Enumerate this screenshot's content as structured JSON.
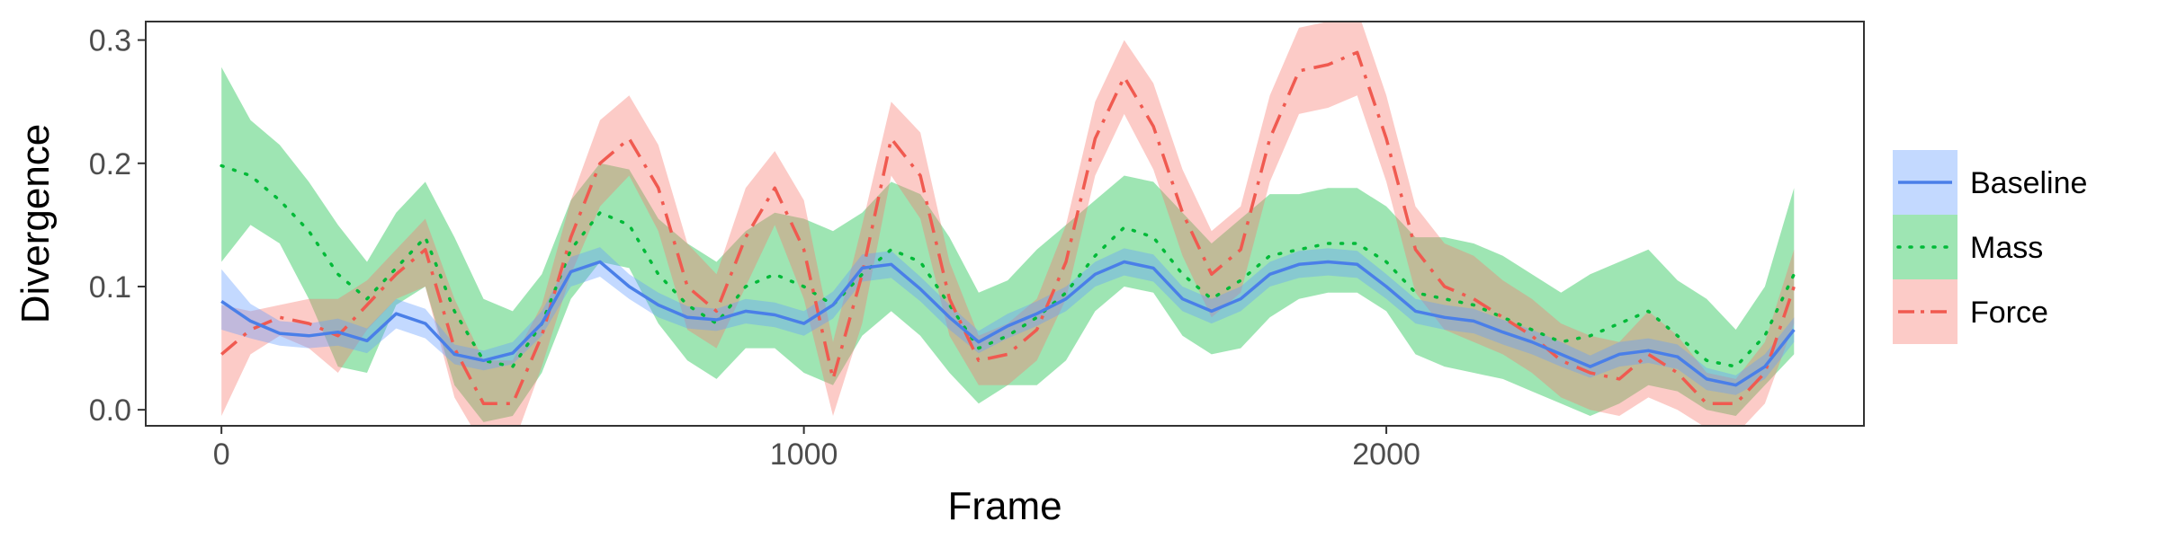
{
  "chart_data": {
    "type": "line",
    "xlabel": "Frame",
    "ylabel": "Divergence",
    "xlim": [
      -130,
      2820
    ],
    "ylim": [
      -0.013,
      0.315
    ],
    "x_ticks": [
      0,
      1000,
      2000
    ],
    "x_tick_labels": [
      "0",
      "1000",
      "2000"
    ],
    "y_ticks": [
      0.0,
      0.1,
      0.2,
      0.3
    ],
    "y_tick_labels": [
      "0.0",
      "0.1",
      "0.2",
      "0.3"
    ],
    "grid": false,
    "legend_position": "right",
    "x": [
      0,
      50,
      100,
      150,
      200,
      250,
      300,
      350,
      400,
      450,
      500,
      550,
      600,
      650,
      700,
      750,
      800,
      850,
      900,
      950,
      1000,
      1050,
      1100,
      1150,
      1200,
      1250,
      1300,
      1350,
      1400,
      1450,
      1500,
      1550,
      1600,
      1650,
      1700,
      1750,
      1800,
      1850,
      1900,
      1950,
      2000,
      2050,
      2100,
      2150,
      2200,
      2250,
      2300,
      2350,
      2400,
      2450,
      2500,
      2550,
      2600,
      2650,
      2700
    ],
    "series": [
      {
        "name": "Baseline",
        "color": "#619CFF",
        "line_color": "#4A7FE8",
        "dash": "solid",
        "values": [
          0.088,
          0.072,
          0.062,
          0.06,
          0.063,
          0.056,
          0.078,
          0.07,
          0.045,
          0.04,
          0.046,
          0.07,
          0.112,
          0.12,
          0.1,
          0.085,
          0.075,
          0.073,
          0.08,
          0.077,
          0.07,
          0.085,
          0.115,
          0.118,
          0.098,
          0.075,
          0.055,
          0.068,
          0.078,
          0.09,
          0.11,
          0.12,
          0.115,
          0.09,
          0.08,
          0.09,
          0.11,
          0.118,
          0.12,
          0.118,
          0.1,
          0.08,
          0.075,
          0.072,
          0.063,
          0.055,
          0.045,
          0.035,
          0.045,
          0.048,
          0.043,
          0.025,
          0.02,
          0.035,
          0.065
        ],
        "lower": [
          0.065,
          0.058,
          0.052,
          0.05,
          0.052,
          0.046,
          0.066,
          0.058,
          0.037,
          0.032,
          0.037,
          0.06,
          0.1,
          0.108,
          0.09,
          0.075,
          0.066,
          0.064,
          0.07,
          0.067,
          0.06,
          0.074,
          0.104,
          0.107,
          0.088,
          0.065,
          0.046,
          0.058,
          0.068,
          0.08,
          0.1,
          0.109,
          0.104,
          0.08,
          0.07,
          0.08,
          0.1,
          0.107,
          0.109,
          0.107,
          0.09,
          0.07,
          0.065,
          0.062,
          0.053,
          0.045,
          0.035,
          0.026,
          0.035,
          0.038,
          0.033,
          0.016,
          0.012,
          0.025,
          0.055
        ],
        "upper": [
          0.114,
          0.086,
          0.072,
          0.07,
          0.074,
          0.066,
          0.09,
          0.082,
          0.053,
          0.048,
          0.055,
          0.08,
          0.124,
          0.132,
          0.11,
          0.095,
          0.084,
          0.082,
          0.09,
          0.087,
          0.08,
          0.096,
          0.126,
          0.129,
          0.108,
          0.085,
          0.064,
          0.078,
          0.088,
          0.1,
          0.12,
          0.131,
          0.126,
          0.1,
          0.09,
          0.1,
          0.12,
          0.129,
          0.131,
          0.129,
          0.11,
          0.09,
          0.085,
          0.082,
          0.073,
          0.065,
          0.055,
          0.044,
          0.055,
          0.058,
          0.053,
          0.034,
          0.028,
          0.045,
          0.075
        ]
      },
      {
        "name": "Mass",
        "color": "#00BA38",
        "line_color": "#00BA38",
        "dash": "dotted",
        "values": [
          0.198,
          0.19,
          0.17,
          0.145,
          0.11,
          0.09,
          0.115,
          0.14,
          0.08,
          0.04,
          0.035,
          0.07,
          0.13,
          0.16,
          0.15,
          0.11,
          0.085,
          0.07,
          0.1,
          0.11,
          0.1,
          0.085,
          0.11,
          0.13,
          0.12,
          0.085,
          0.05,
          0.06,
          0.075,
          0.095,
          0.125,
          0.148,
          0.14,
          0.11,
          0.09,
          0.105,
          0.125,
          0.13,
          0.135,
          0.135,
          0.12,
          0.095,
          0.09,
          0.085,
          0.075,
          0.065,
          0.055,
          0.06,
          0.07,
          0.08,
          0.06,
          0.04,
          0.035,
          0.06,
          0.11
        ],
        "lower": [
          0.12,
          0.15,
          0.135,
          0.09,
          0.035,
          0.03,
          0.085,
          0.1,
          0.02,
          -0.01,
          -0.005,
          0.03,
          0.09,
          0.12,
          0.115,
          0.07,
          0.04,
          0.025,
          0.05,
          0.05,
          0.03,
          0.02,
          0.06,
          0.08,
          0.06,
          0.03,
          0.005,
          0.02,
          0.02,
          0.04,
          0.08,
          0.1,
          0.095,
          0.06,
          0.045,
          0.05,
          0.075,
          0.09,
          0.095,
          0.095,
          0.08,
          0.045,
          0.035,
          0.03,
          0.025,
          0.015,
          0.005,
          -0.005,
          0.005,
          0.02,
          0.015,
          0.0,
          -0.005,
          0.02,
          0.045
        ],
        "upper": [
          0.278,
          0.235,
          0.215,
          0.185,
          0.15,
          0.12,
          0.16,
          0.185,
          0.14,
          0.09,
          0.08,
          0.11,
          0.17,
          0.2,
          0.195,
          0.155,
          0.135,
          0.12,
          0.145,
          0.16,
          0.155,
          0.145,
          0.16,
          0.185,
          0.175,
          0.14,
          0.095,
          0.105,
          0.13,
          0.15,
          0.17,
          0.19,
          0.185,
          0.16,
          0.135,
          0.155,
          0.175,
          0.175,
          0.18,
          0.18,
          0.165,
          0.14,
          0.14,
          0.135,
          0.125,
          0.11,
          0.095,
          0.11,
          0.12,
          0.13,
          0.105,
          0.09,
          0.065,
          0.1,
          0.18
        ]
      },
      {
        "name": "Force",
        "color": "#F8766D",
        "line_color": "#F05A50",
        "dash": "dashdot",
        "values": [
          0.045,
          0.065,
          0.075,
          0.07,
          0.06,
          0.085,
          0.11,
          0.13,
          0.05,
          0.005,
          0.005,
          0.06,
          0.14,
          0.2,
          0.22,
          0.18,
          0.1,
          0.08,
          0.14,
          0.18,
          0.13,
          0.025,
          0.11,
          0.22,
          0.19,
          0.09,
          0.04,
          0.045,
          0.065,
          0.12,
          0.22,
          0.27,
          0.23,
          0.16,
          0.11,
          0.13,
          0.22,
          0.275,
          0.28,
          0.29,
          0.22,
          0.13,
          0.1,
          0.09,
          0.075,
          0.06,
          0.04,
          0.03,
          0.025,
          0.045,
          0.03,
          0.005,
          0.005,
          0.03,
          0.1
        ],
        "lower": [
          -0.005,
          0.045,
          0.06,
          0.05,
          0.03,
          0.065,
          0.09,
          0.1,
          0.01,
          -0.03,
          -0.03,
          0.035,
          0.11,
          0.165,
          0.19,
          0.145,
          0.065,
          0.05,
          0.1,
          0.15,
          0.09,
          -0.005,
          0.07,
          0.19,
          0.155,
          0.06,
          0.02,
          0.02,
          0.04,
          0.09,
          0.19,
          0.24,
          0.195,
          0.125,
          0.075,
          0.095,
          0.185,
          0.24,
          0.245,
          0.255,
          0.185,
          0.095,
          0.065,
          0.055,
          0.045,
          0.03,
          0.01,
          0.0,
          -0.005,
          0.01,
          0.0,
          -0.015,
          -0.02,
          0.005,
          0.07
        ],
        "upper": [
          0.085,
          0.08,
          0.085,
          0.09,
          0.09,
          0.105,
          0.13,
          0.155,
          0.09,
          0.04,
          0.04,
          0.085,
          0.17,
          0.235,
          0.255,
          0.215,
          0.135,
          0.11,
          0.18,
          0.21,
          0.17,
          0.055,
          0.15,
          0.25,
          0.225,
          0.12,
          0.06,
          0.07,
          0.09,
          0.15,
          0.25,
          0.3,
          0.265,
          0.195,
          0.145,
          0.165,
          0.255,
          0.31,
          0.315,
          0.325,
          0.255,
          0.165,
          0.135,
          0.125,
          0.105,
          0.09,
          0.07,
          0.06,
          0.055,
          0.08,
          0.06,
          0.03,
          0.025,
          0.055,
          0.13
        ]
      }
    ]
  }
}
